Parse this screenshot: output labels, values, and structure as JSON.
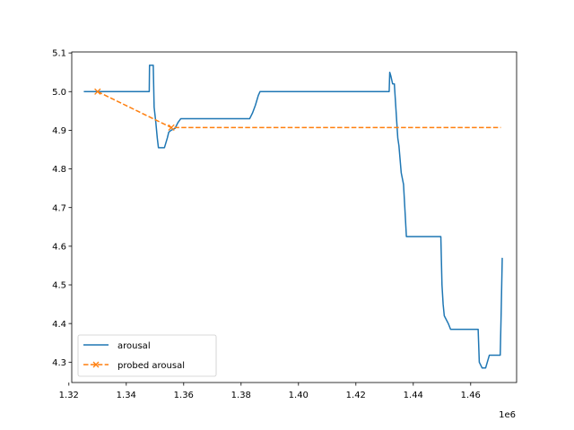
{
  "chart_data": {
    "type": "line",
    "title": "",
    "xlabel": "",
    "ylabel": "",
    "x_offset_label": "1e6",
    "xlim": [
      1.321,
      1.476
    ],
    "ylim": [
      4.2474,
      5.1026
    ],
    "x_ticks": [
      {
        "value": 1.32,
        "label": "1.32"
      },
      {
        "value": 1.34,
        "label": "1.34"
      },
      {
        "value": 1.36,
        "label": "1.36"
      },
      {
        "value": 1.38,
        "label": "1.38"
      },
      {
        "value": 1.4,
        "label": "1.40"
      },
      {
        "value": 1.42,
        "label": "1.42"
      },
      {
        "value": 1.44,
        "label": "1.44"
      },
      {
        "value": 1.46,
        "label": "1.46"
      }
    ],
    "y_ticks": [
      {
        "value": 4.3,
        "label": "4.3"
      },
      {
        "value": 4.4,
        "label": "4.4"
      },
      {
        "value": 4.5,
        "label": "4.5"
      },
      {
        "value": 4.6,
        "label": "4.6"
      },
      {
        "value": 4.7,
        "label": "4.7"
      },
      {
        "value": 4.8,
        "label": "4.8"
      },
      {
        "value": 4.9,
        "label": "4.9"
      },
      {
        "value": 5.0,
        "label": "5.0"
      },
      {
        "value": 5.1,
        "label": "5.1"
      }
    ],
    "grid": false,
    "legend_position": "lower-left",
    "series": [
      {
        "name": "arousal",
        "color": "#1f77b4",
        "style": "solid",
        "marker": "none",
        "points": [
          [
            1.3252,
            5.0
          ],
          [
            1.348,
            5.0
          ],
          [
            1.3481,
            5.068
          ],
          [
            1.3494,
            5.068
          ],
          [
            1.3497,
            4.96
          ],
          [
            1.3503,
            4.92
          ],
          [
            1.3508,
            4.88
          ],
          [
            1.3512,
            4.855
          ],
          [
            1.3533,
            4.855
          ],
          [
            1.3543,
            4.88
          ],
          [
            1.3548,
            4.895
          ],
          [
            1.3556,
            4.9
          ],
          [
            1.357,
            4.905
          ],
          [
            1.358,
            4.92
          ],
          [
            1.359,
            4.93
          ],
          [
            1.383,
            4.93
          ],
          [
            1.384,
            4.945
          ],
          [
            1.385,
            4.965
          ],
          [
            1.386,
            4.99
          ],
          [
            1.3866,
            5.0
          ],
          [
            1.4316,
            5.0
          ],
          [
            1.4318,
            5.05
          ],
          [
            1.4322,
            5.04
          ],
          [
            1.4328,
            5.02
          ],
          [
            1.4334,
            5.02
          ],
          [
            1.4346,
            4.88
          ],
          [
            1.435,
            4.86
          ],
          [
            1.4358,
            4.79
          ],
          [
            1.4366,
            4.76
          ],
          [
            1.4372,
            4.68
          ],
          [
            1.4376,
            4.625
          ],
          [
            1.4496,
            4.625
          ],
          [
            1.45,
            4.5
          ],
          [
            1.4504,
            4.45
          ],
          [
            1.4508,
            4.42
          ],
          [
            1.4522,
            4.4
          ],
          [
            1.453,
            4.385
          ],
          [
            1.4626,
            4.385
          ],
          [
            1.463,
            4.3
          ],
          [
            1.464,
            4.285
          ],
          [
            1.4652,
            4.285
          ],
          [
            1.4665,
            4.318
          ],
          [
            1.4703,
            4.318
          ],
          [
            1.4706,
            4.42
          ],
          [
            1.471,
            4.57
          ]
        ]
      },
      {
        "name": "probed arousal",
        "color": "#ff7f0e",
        "style": "dashed",
        "marker": "x",
        "points": [
          [
            1.33,
            5.0
          ],
          [
            1.3557,
            4.907
          ],
          [
            1.4705,
            4.907
          ]
        ],
        "marker_points": [
          [
            1.33,
            5.0
          ],
          [
            1.3557,
            4.907
          ]
        ]
      }
    ]
  }
}
